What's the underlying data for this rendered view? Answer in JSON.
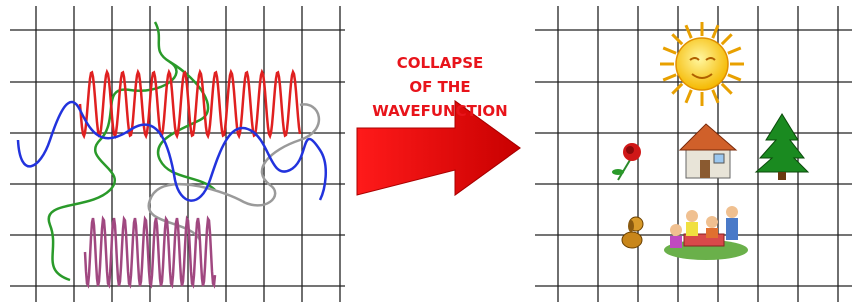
{
  "label": {
    "lines": [
      "COLLAPSE",
      "OF THE",
      "WAVEFUNCTION"
    ]
  }
}
